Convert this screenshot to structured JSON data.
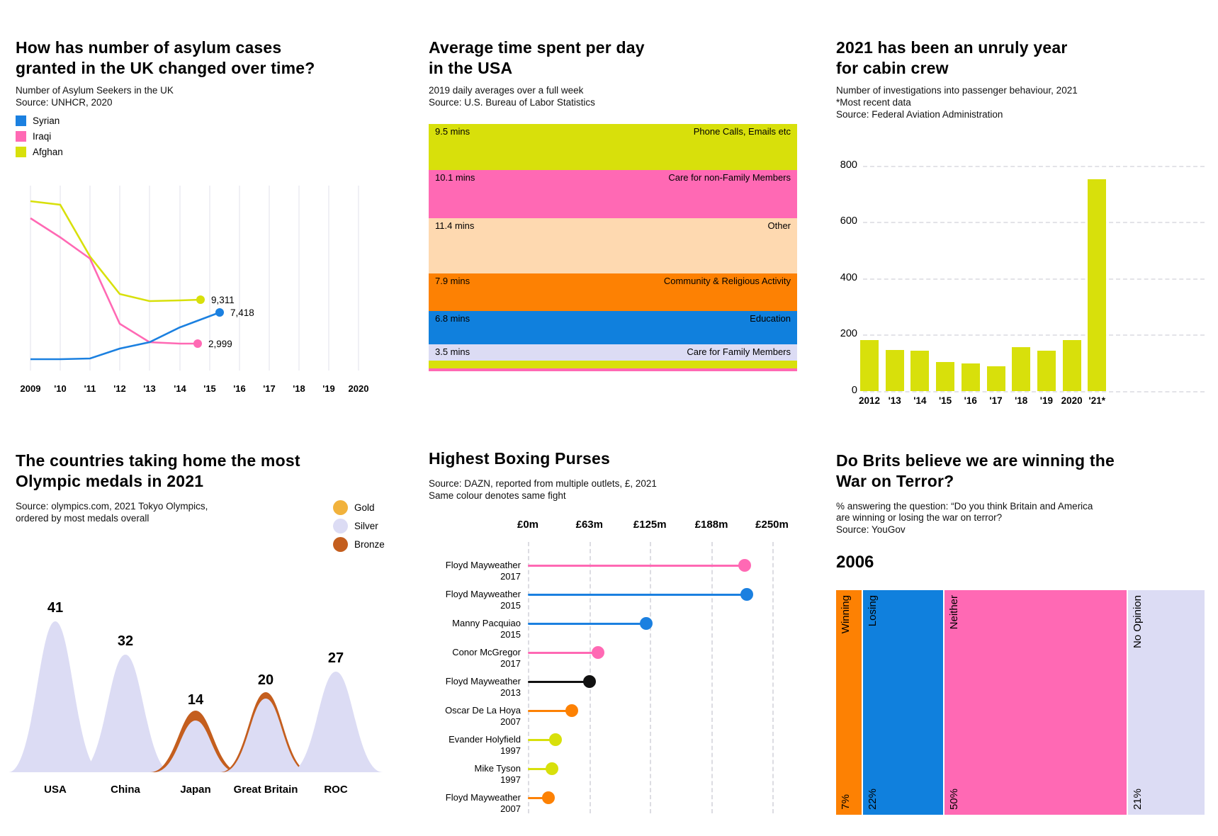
{
  "chart_data": [
    {
      "type": "line",
      "title_lines": [
        "How has number of asylum cases",
        "granted in the UK changed over time?"
      ],
      "subtitle": "Number of Asylum Seekers in the UK",
      "source": "Source: UNHCR, 2020",
      "x": [
        "2009",
        "'10",
        "'11",
        "'12",
        "'13",
        "'14",
        "'15",
        "'16",
        "'17",
        "'18",
        "'19",
        "2020"
      ],
      "series": [
        {
          "name": "Syrian",
          "color": "#1b80e0",
          "values": [
            490,
            500,
            600,
            2070,
            3010,
            5220,
            7418
          ]
        },
        {
          "name": "Iraqi",
          "color": "#ff69b4",
          "values": [
            21400,
            18600,
            15500,
            5700,
            3100,
            2999
          ]
        },
        {
          "name": "Afghan",
          "color": "#d8e00b",
          "values": [
            23900,
            23400,
            15700,
            10150,
            9150,
            9311
          ]
        }
      ],
      "end_labels": {
        "Syrian": "7,418",
        "Iraqi": "2,999",
        "Afghan": "9,311"
      }
    },
    {
      "type": "area",
      "title_lines": [
        "Average time spent per day",
        "in the USA"
      ],
      "subtitle": "2019 daily averages over a full week",
      "source": "Source: U.S. Bureau of Labor Statistics",
      "bands": [
        {
          "mins": "9.5 mins",
          "value": 9.5,
          "label": "Phone Calls, Emails etc",
          "color": "#d8e00b"
        },
        {
          "mins": "10.1 mins",
          "value": 10.1,
          "label": "Care for non-Family Members",
          "color": "#ff69b4"
        },
        {
          "mins": "11.4 mins",
          "value": 11.4,
          "label": "Other",
          "color": "#fed9b0"
        },
        {
          "mins": "7.9 mins",
          "value": 7.9,
          "label": "Community & Religious Activity",
          "color": "#fd8103"
        },
        {
          "mins": "6.8 mins",
          "value": 6.8,
          "label": "Education",
          "color": "#1080dd"
        },
        {
          "mins": "3.5 mins",
          "value": 3.5,
          "label": "Care for Family Members",
          "color": "#dcdcf4"
        }
      ],
      "partial_bands": [
        {
          "color": "#d8e00b",
          "height": 11
        },
        {
          "color": "#ff69b4",
          "height": 4
        }
      ]
    },
    {
      "type": "bar",
      "title_lines": [
        "2021 has been an unruly year",
        "for cabin crew"
      ],
      "subtitle": "Number of investigations into passenger behaviour, 2021",
      "note": "*Most recent data",
      "source": "Source: Federal Aviation Administration",
      "categories": [
        "2012",
        "'13",
        "'14",
        "'15",
        "'16",
        "'17",
        "'18",
        "'19",
        "2020",
        "'21*"
      ],
      "values": [
        180,
        146,
        144,
        102,
        99,
        88,
        156,
        144,
        180,
        751
      ],
      "y_ticks": [
        800,
        600,
        400,
        200,
        0
      ],
      "ylim": [
        0,
        880
      ],
      "bar_color": "#d8e00b"
    },
    {
      "type": "area",
      "title_lines": [
        "The countries taking home the most",
        "Olympic medals in 2021"
      ],
      "source_lines": [
        "Source: olympics.com, 2021 Tokyo Olympics,",
        "ordered by most medals overall"
      ],
      "legend": [
        {
          "label": "Gold",
          "color": "#f1b23c"
        },
        {
          "label": "Silver",
          "color": "#dcdcf4"
        },
        {
          "label": "Bronze",
          "color": "#c45e1e"
        }
      ],
      "categories": [
        "USA",
        "China",
        "Japan",
        "Great Britain",
        "ROC"
      ],
      "values": [
        41,
        32,
        14,
        20,
        27
      ],
      "bronze_highlight": [
        "Japan",
        "Great Britain"
      ]
    },
    {
      "type": "scatter",
      "title_lines": [
        "Highest Boxing Purses"
      ],
      "source": "Source: DAZN, reported from multiple outlets, £, 2021",
      "note": "Same colour denotes same fight",
      "x_ticks": [
        {
          "label": "£0m",
          "value": 0
        },
        {
          "label": "£63m",
          "value": 63
        },
        {
          "label": "£125m",
          "value": 125
        },
        {
          "label": "£188m",
          "value": 188
        },
        {
          "label": "£250m",
          "value": 250
        }
      ],
      "xlim": [
        0,
        250
      ],
      "rows": [
        {
          "name": "Floyd Mayweather",
          "year": "2017",
          "value_m": 222,
          "color": "#ff69b4"
        },
        {
          "name": "Floyd Mayweather",
          "year": "2015",
          "value_m": 224,
          "color": "#1b80e0"
        },
        {
          "name": "Manny Pacquiao",
          "year": "2015",
          "value_m": 121,
          "color": "#1b80e0"
        },
        {
          "name": "Conor McGregor",
          "year": "2017",
          "value_m": 72,
          "color": "#ff69b4"
        },
        {
          "name": "Floyd Mayweather",
          "year": "2013",
          "value_m": 63,
          "color": "#111111"
        },
        {
          "name": "Oscar De La Hoya",
          "year": "2007",
          "value_m": 45,
          "color": "#fd8103"
        },
        {
          "name": "Evander Holyfield",
          "year": "1997",
          "value_m": 28,
          "color": "#d8e00b"
        },
        {
          "name": "Mike Tyson",
          "year": "1997",
          "value_m": 25,
          "color": "#d8e00b"
        },
        {
          "name": "Floyd Mayweather",
          "year": "2007",
          "value_m": 21,
          "color": "#fd8103"
        }
      ]
    },
    {
      "type": "bar",
      "title_lines": [
        "Do Brits believe we are winning the",
        "War on Terror?"
      ],
      "subtitle_lines": [
        "% answering the question: “Do you think Britain and America",
        "are winning or losing the war on terror?",
        "Source: YouGov"
      ],
      "year_label": "2006",
      "segments": [
        {
          "label": "Winning",
          "pct": 7,
          "pct_label": "7%",
          "color": "#fd8103"
        },
        {
          "label": "Losing",
          "pct": 22,
          "pct_label": "22%",
          "color": "#1080dd"
        },
        {
          "label": "Neither",
          "pct": 50,
          "pct_label": "50%",
          "color": "#ff69b4"
        },
        {
          "label": "No Opinion",
          "pct": 21,
          "pct_label": "21%",
          "color": "#dcdcf4"
        }
      ]
    }
  ]
}
